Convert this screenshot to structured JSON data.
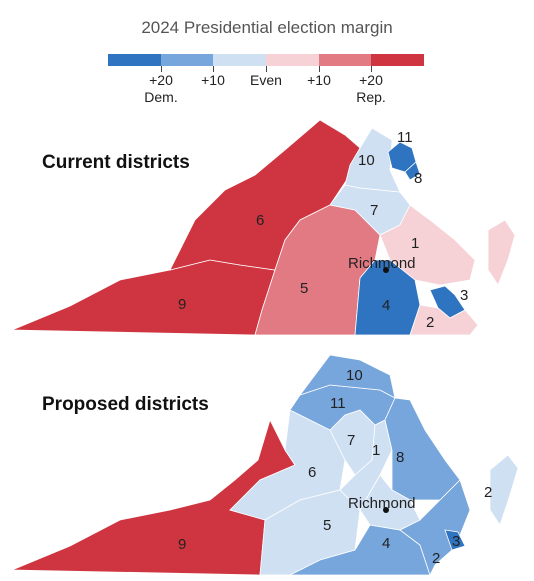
{
  "title": "2024 Presidential election margin",
  "legend": {
    "colors": [
      "#2f74c0",
      "#77a6dc",
      "#cfe0f3",
      "#f6d2d6",
      "#e27a83",
      "#cf3540"
    ],
    "ticks": [
      {
        "label": "+20",
        "sub": "Dem."
      },
      {
        "label": "+10",
        "sub": ""
      },
      {
        "label": "Even",
        "sub": ""
      },
      {
        "label": "+10",
        "sub": ""
      },
      {
        "label": "+20",
        "sub": "Rep."
      }
    ]
  },
  "colors": {
    "dem_strong": "#2f74c0",
    "dem_mid": "#77a6dc",
    "dem_light": "#cfe0f3",
    "rep_light": "#f6d2d6",
    "rep_mid": "#e27a83",
    "rep_strong": "#cf3540"
  },
  "current": {
    "heading": "Current districts",
    "city": "Richmond",
    "districts": {
      "d1": "1",
      "d2": "2",
      "d3": "3",
      "d4": "4",
      "d5": "5",
      "d6": "6",
      "d7": "7",
      "d8": "8",
      "d9": "9",
      "d10": "10",
      "d11": "11"
    }
  },
  "proposed": {
    "heading": "Proposed districts",
    "city": "Richmond",
    "districts": {
      "d1": "1",
      "d2": "2",
      "d2b": "2",
      "d3": "3",
      "d4": "4",
      "d5": "5",
      "d6": "6",
      "d7": "7",
      "d8": "8",
      "d9": "9",
      "d10": "10",
      "d11": "11"
    }
  }
}
